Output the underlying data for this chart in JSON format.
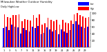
{
  "title": "Milwaukee Weather Outdoor Humidity",
  "subtitle": "Daily High/Low",
  "high_color": "#ff0000",
  "low_color": "#0000ff",
  "bg_color": "#ffffff",
  "plot_bg": "#ffffff",
  "ylim": [
    0,
    100
  ],
  "ytick_labels": [
    "20",
    "40",
    "60",
    "80",
    "100"
  ],
  "ytick_vals": [
    20,
    40,
    60,
    80,
    100
  ],
  "high_values": [
    95,
    88,
    85,
    93,
    92,
    95,
    75,
    82,
    80,
    78,
    93,
    85,
    95,
    65,
    70,
    85,
    80,
    75,
    80,
    65,
    80,
    72,
    70,
    78,
    95,
    98,
    92,
    90,
    85,
    88
  ],
  "low_values": [
    55,
    60,
    50,
    65,
    60,
    58,
    40,
    55,
    50,
    45,
    60,
    55,
    62,
    38,
    42,
    58,
    52,
    45,
    50,
    38,
    52,
    45,
    42,
    50,
    68,
    75,
    65,
    60,
    55,
    60
  ],
  "num_bars": 30,
  "legend_labels": [
    "Low",
    "High"
  ],
  "legend_colors": [
    "#0000ff",
    "#ff0000"
  ]
}
